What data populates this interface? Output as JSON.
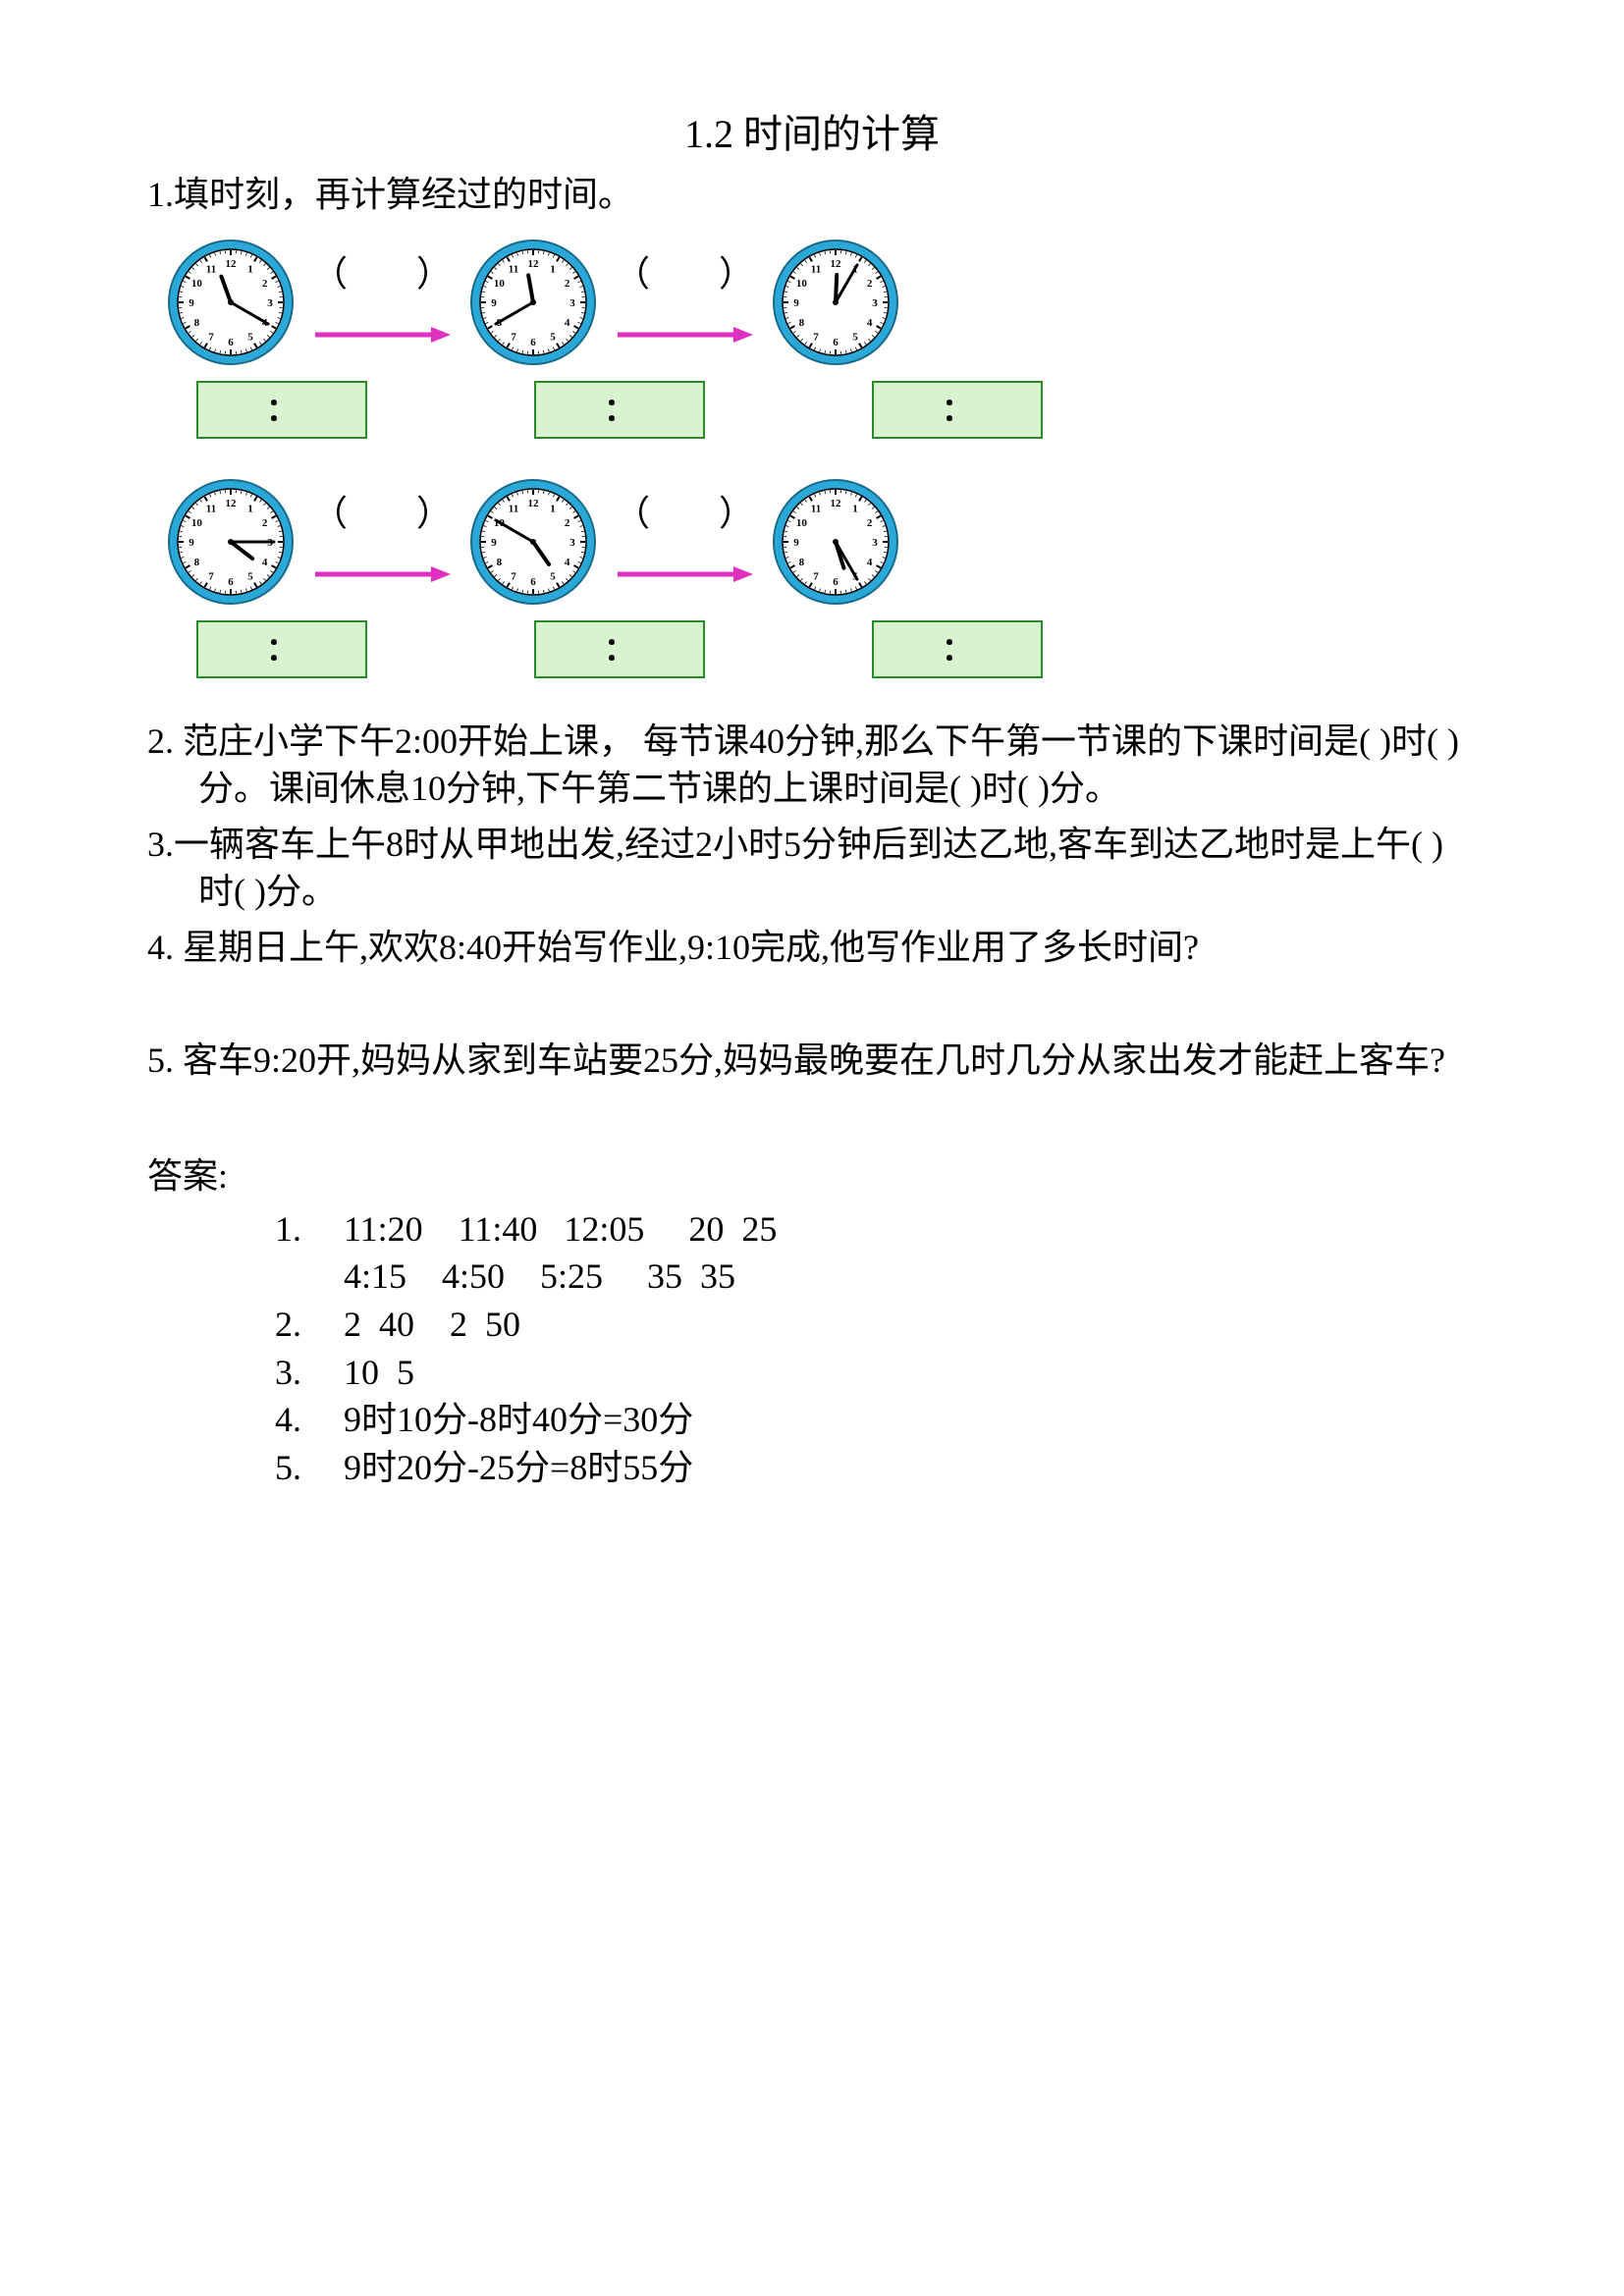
{
  "title": "1.2  时间的计算",
  "q1": {
    "prompt": "1.填时刻，再计算经过的时间。",
    "row1": {
      "clock1": {
        "hour": 11,
        "minute": 20
      },
      "clock2": {
        "hour": 11,
        "minute": 40
      },
      "clock3": {
        "hour": 12,
        "minute": 5
      }
    },
    "row2": {
      "clock1": {
        "hour": 4,
        "minute": 15
      },
      "clock2": {
        "hour": 4,
        "minute": 50
      },
      "clock3": {
        "hour": 5,
        "minute": 25
      }
    },
    "paren_left": "（",
    "paren_right": "）",
    "box_colon": "："
  },
  "q2": {
    "text": "2.  范庄小学下午2:00开始上课，  每节课40分钟,那么下午第一节课的下课时间是(     )时(     )分。课间休息10分钟,下午第二节课的上课时间是(     )时(     )分。"
  },
  "q3": {
    "text": "3.一辆客车上午8时从甲地出发,经过2小时5分钟后到达乙地,客车到达乙地时是上午(     )时(     )分。"
  },
  "q4": {
    "text": "4.  星期日上午,欢欢8:40开始写作业,9:10完成,他写作业用了多长时间?"
  },
  "q5": {
    "text": "5.  客车9:20开,妈妈从家到车站要25分,妈妈最晚要在几时几分从家出发才能赶上客车?"
  },
  "answers": {
    "label": "答案:",
    "a1_line1": "11:20    11:40   12:05     20  25",
    "a1_line2": "4:15    4:50    5:25     35  35",
    "a2": "2  40    2  50",
    "a3": "10  5",
    "a4": "9时10分-8时40分=30分",
    "a5": "9时20分-25分=8时55分"
  },
  "style": {
    "clock_outer": "#2aa8d8",
    "clock_inner": "#ffffff",
    "clock_border": "#1a6a8a",
    "arrow_color": "#e030c0",
    "box_bg": "#d9f2d0",
    "box_border": "#2a8a2a"
  }
}
